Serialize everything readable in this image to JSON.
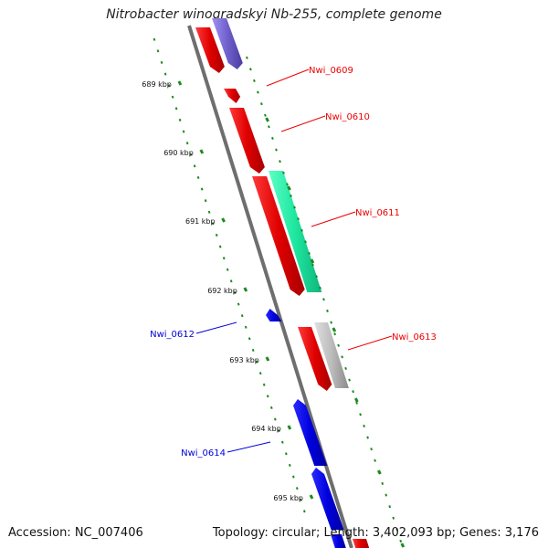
{
  "title": "Nitrobacter winogradskyi Nb-255, complete genome",
  "footer": {
    "accession": "Accession: NC_007406",
    "topology": "Topology: circular; Length: 3,402,093 bp; Genes: 3,176"
  },
  "colors": {
    "forward": "#ee0000",
    "reverse": "#0000dd",
    "tick": "#1e8a1e",
    "backbone": "#7a7a7a",
    "teal": "#1ee6a0",
    "grey": "#b4b4b4",
    "purple": "#7060cc"
  },
  "ticks": [
    {
      "label": "689 kbp",
      "kbp": 689
    },
    {
      "label": "690 kbp",
      "kbp": 690
    },
    {
      "label": "691 kbp",
      "kbp": 691
    },
    {
      "label": "692 kbp",
      "kbp": 692
    },
    {
      "label": "693 kbp",
      "kbp": 693
    },
    {
      "label": "694 kbp",
      "kbp": 694
    },
    {
      "label": "695 kbp",
      "kbp": 695
    }
  ],
  "gene_labels": [
    {
      "id": "Nwi_0609",
      "strand": "forward"
    },
    {
      "id": "Nwi_0610",
      "strand": "forward"
    },
    {
      "id": "Nwi_0611",
      "strand": "forward"
    },
    {
      "id": "Nwi_0612",
      "strand": "reverse"
    },
    {
      "id": "Nwi_0613",
      "strand": "forward"
    },
    {
      "id": "Nwi_0614",
      "strand": "reverse"
    }
  ]
}
